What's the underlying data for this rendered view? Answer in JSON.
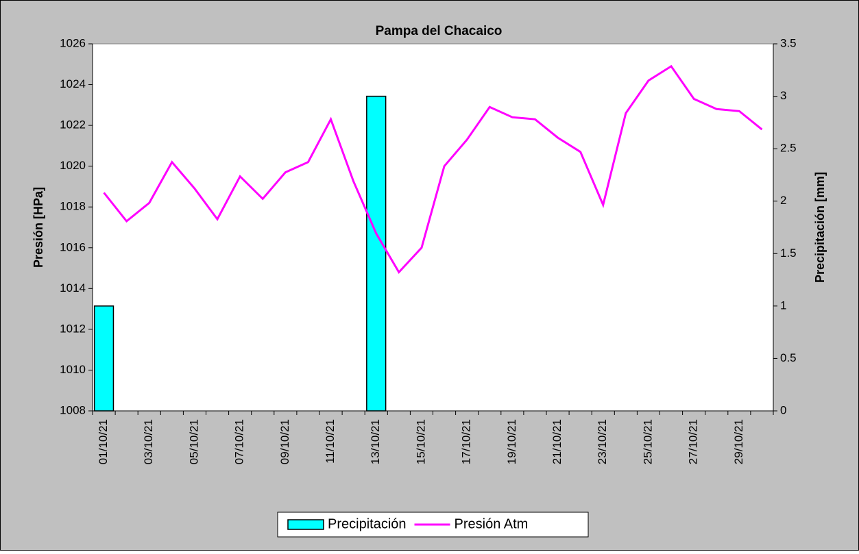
{
  "chart_data": {
    "type": "combo",
    "title": "Pampa del Chacaico",
    "ylabel": "Presión [HPa]",
    "y2label": "Precipitación [mm]",
    "categories": [
      "01/10/21",
      null,
      "03/10/21",
      null,
      "05/10/21",
      null,
      "07/10/21",
      null,
      "09/10/21",
      null,
      "11/10/21",
      null,
      "13/10/21",
      null,
      "15/10/21",
      null,
      "17/10/21",
      null,
      "19/10/21",
      null,
      "21/10/21",
      null,
      "23/10/21",
      null,
      "25/10/21",
      null,
      "27/10/21",
      null,
      "29/10/21",
      null
    ],
    "series": [
      {
        "name": "Precipitación",
        "type": "bar",
        "axis": "y2",
        "color": "#00ffff",
        "values": [
          1,
          0,
          0,
          0,
          0,
          0,
          0,
          0,
          0,
          0,
          0,
          0,
          3,
          0,
          0,
          0,
          0,
          0,
          0,
          0,
          0,
          0,
          0,
          0,
          0,
          0,
          0,
          0,
          0,
          0
        ]
      },
      {
        "name": "Presión Atm",
        "type": "line",
        "color": "#ff00ff",
        "values": [
          1018.7,
          1017.3,
          1018.2,
          1020.2,
          1018.9,
          1017.4,
          1019.5,
          1018.4,
          1019.7,
          1020.2,
          1022.3,
          1019.25,
          1016.7,
          1014.8,
          1016.0,
          1020.0,
          1021.3,
          1022.9,
          1022.4,
          1022.3,
          1021.4,
          1020.7,
          1018.1,
          1022.6,
          1024.2,
          1024.9,
          1023.3,
          1022.8,
          1022.7,
          1021.8
        ]
      }
    ],
    "ylim": [
      1008,
      1026
    ],
    "yticks": [
      1008,
      1010,
      1012,
      1014,
      1016,
      1018,
      1020,
      1022,
      1024,
      1026
    ],
    "y2lim": [
      0,
      3.5
    ],
    "y2ticks": [
      0,
      0.5,
      1,
      1.5,
      2,
      2.5,
      3,
      3.5
    ],
    "legend": "bottom"
  }
}
